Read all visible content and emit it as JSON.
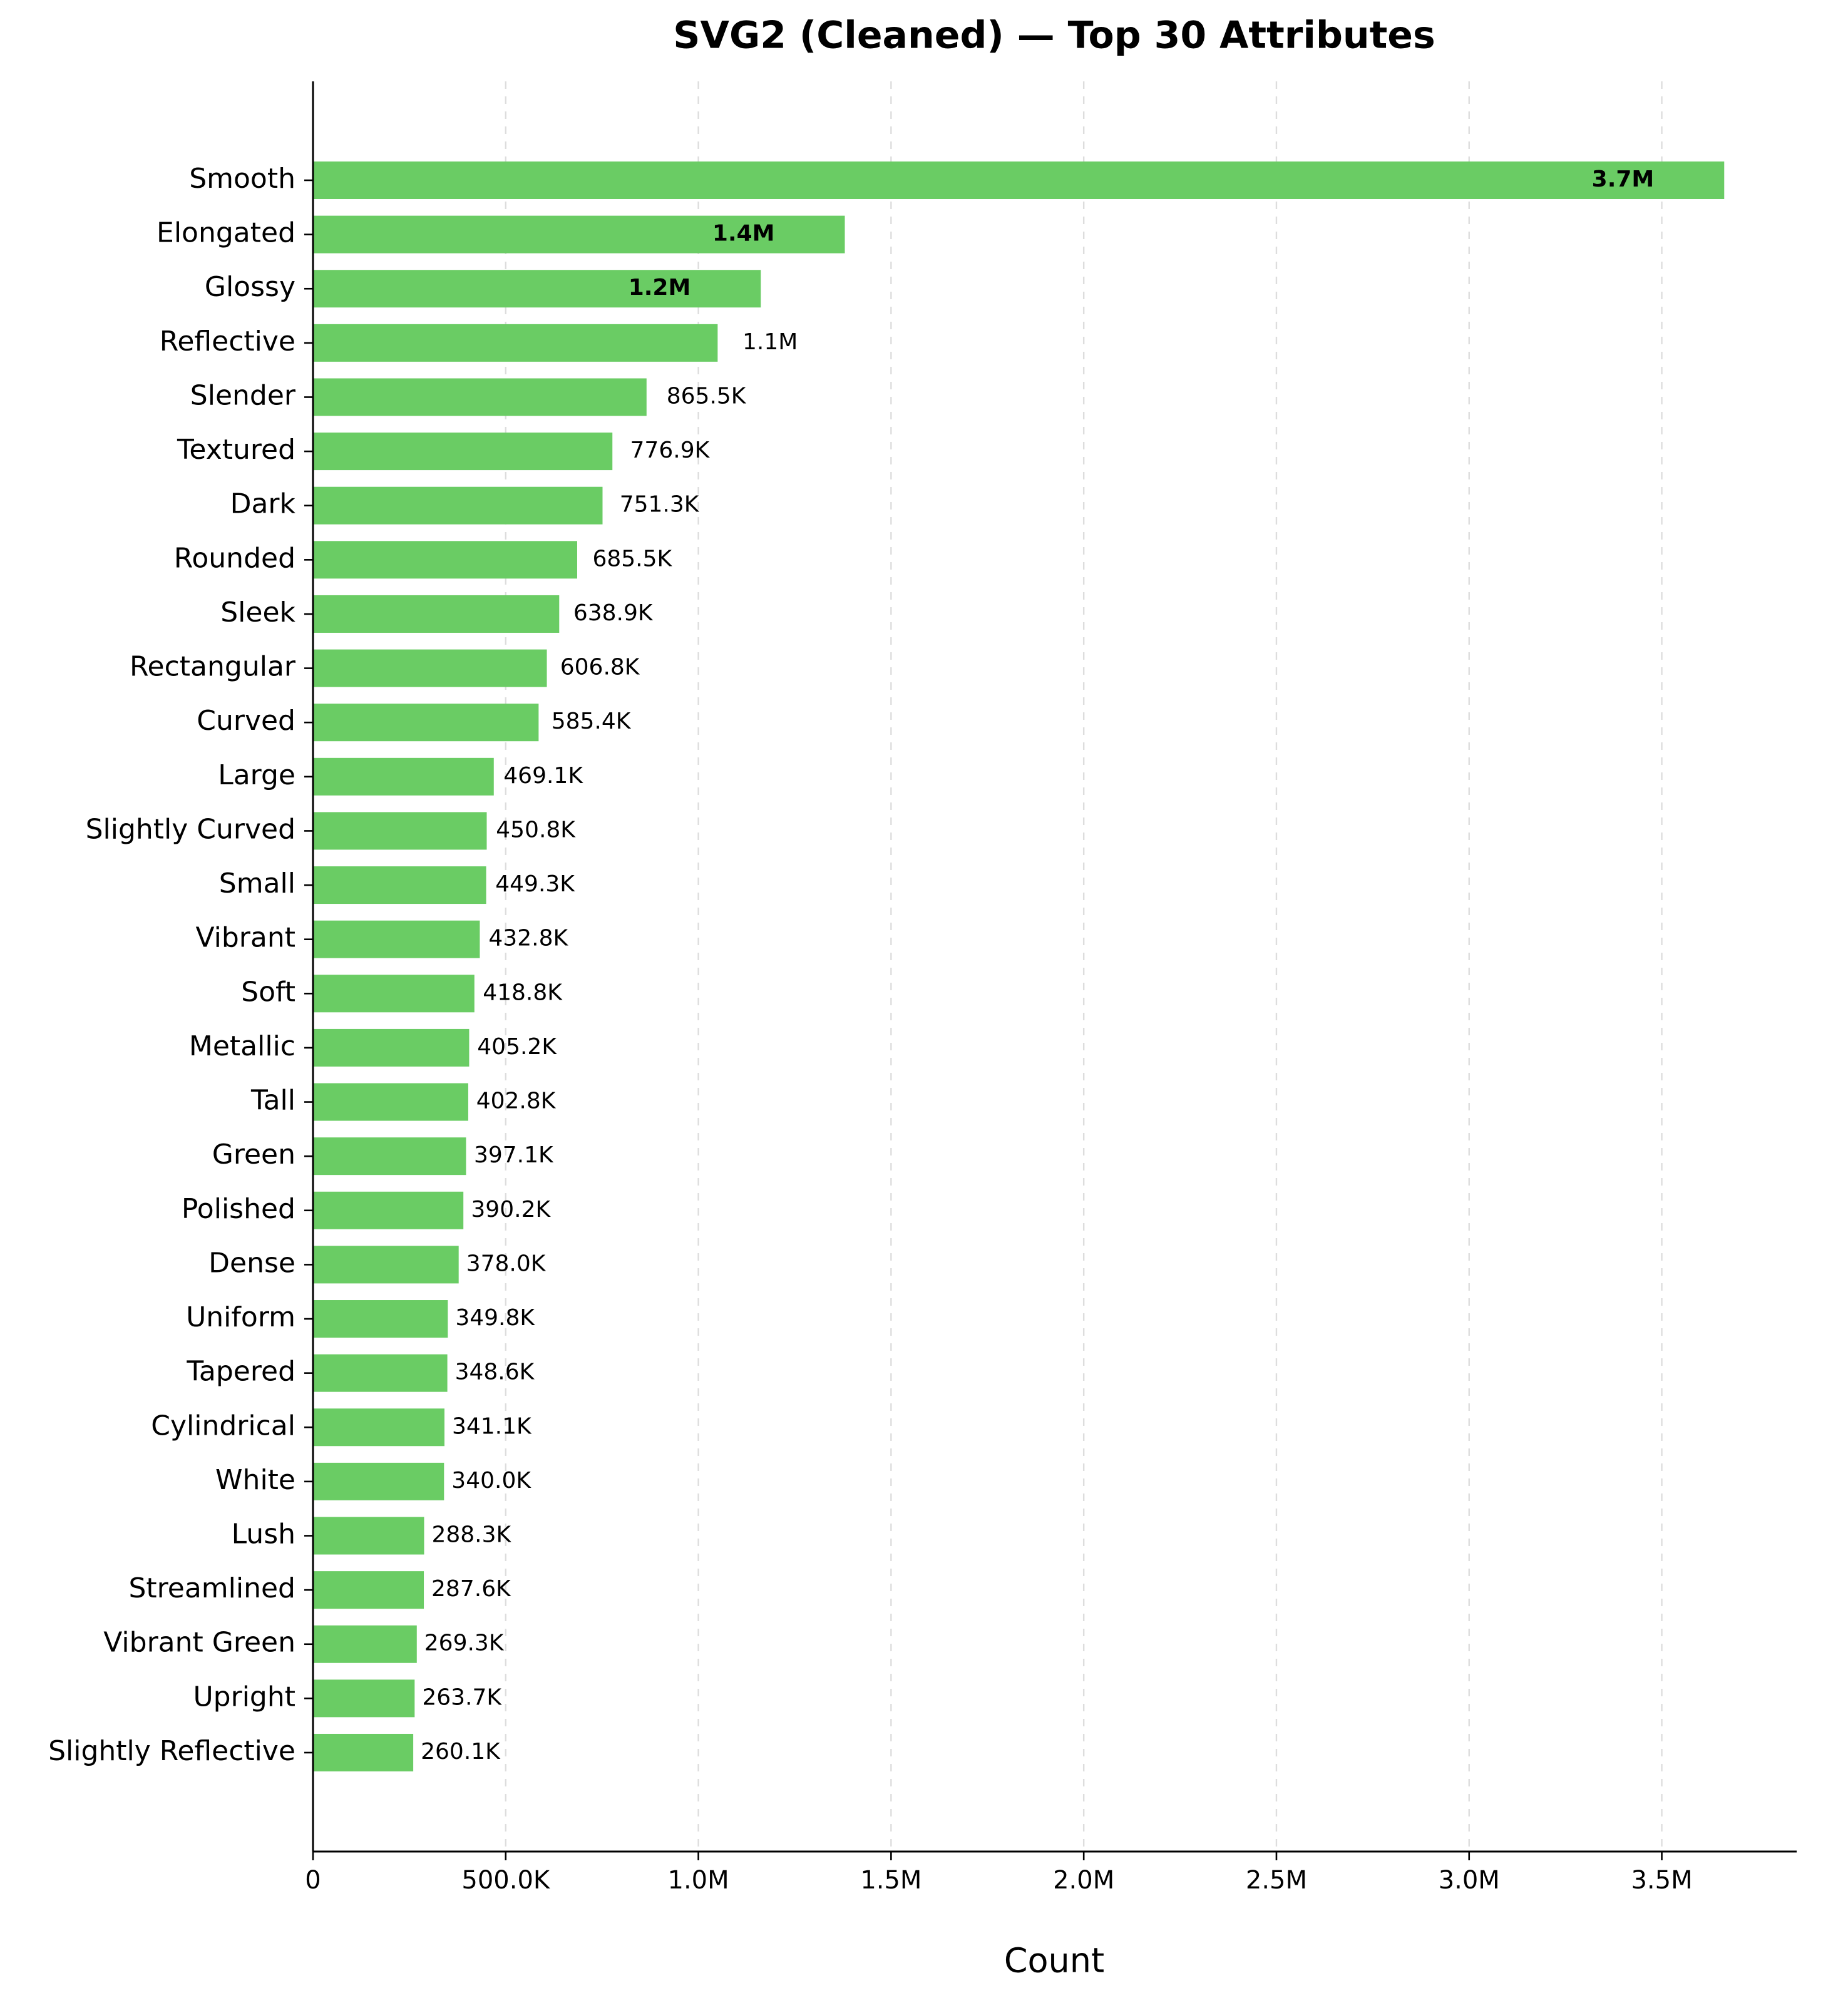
{
  "chart_data": {
    "type": "bar",
    "orientation": "horizontal",
    "title": "SVG2 (Cleaned) — Top 30 Attributes",
    "x_label": "Count",
    "color": "#6acc64",
    "grid": true,
    "categories": [
      "Smooth",
      "Elongated",
      "Glossy",
      "Reflective",
      "Slender",
      "Textured",
      "Dark",
      "Rounded",
      "Sleek",
      "Rectangular",
      "Curved",
      "Large",
      "Slightly Curved",
      "Small",
      "Vibrant",
      "Soft",
      "Metallic",
      "Tall",
      "Green",
      "Polished",
      "Dense",
      "Uniform",
      "Tapered",
      "Cylindrical",
      "White",
      "Lush",
      "Streamlined",
      "Vibrant Green",
      "Upright",
      "Slightly Reflective"
    ],
    "values": [
      3662000,
      1380000,
      1162000,
      1050000,
      865500,
      776900,
      751300,
      685500,
      638900,
      606800,
      585400,
      469100,
      450800,
      449300,
      432800,
      418800,
      405200,
      402800,
      397100,
      390200,
      378000,
      349800,
      348600,
      341100,
      340000,
      288300,
      287600,
      269300,
      263700,
      260100
    ],
    "value_labels": [
      "3.7M",
      "1.4M",
      "1.2M",
      "1.1M",
      "865.5K",
      "776.9K",
      "751.3K",
      "685.5K",
      "638.9K",
      "606.8K",
      "585.4K",
      "469.1K",
      "450.8K",
      "449.3K",
      "432.8K",
      "418.8K",
      "405.2K",
      "402.8K",
      "397.1K",
      "390.2K",
      "378.0K",
      "349.8K",
      "348.6K",
      "341.1K",
      "340.0K",
      "288.3K",
      "287.6K",
      "269.3K",
      "263.7K",
      "260.1K"
    ],
    "xlim": [
      0,
      3850000
    ],
    "xticks": [
      0,
      {
        "value": 500000,
        "label": "500.0K"
      },
      {
        "value": 1000000,
        "label": "1.0M"
      },
      {
        "value": 1500000,
        "label": "1.5M"
      },
      {
        "value": 2000000,
        "label": "2.0M"
      },
      {
        "value": 2500000,
        "label": "2.5M"
      },
      {
        "value": 3000000,
        "label": "3.0M"
      },
      {
        "value": 3500000,
        "label": "3.5M"
      }
    ]
  }
}
